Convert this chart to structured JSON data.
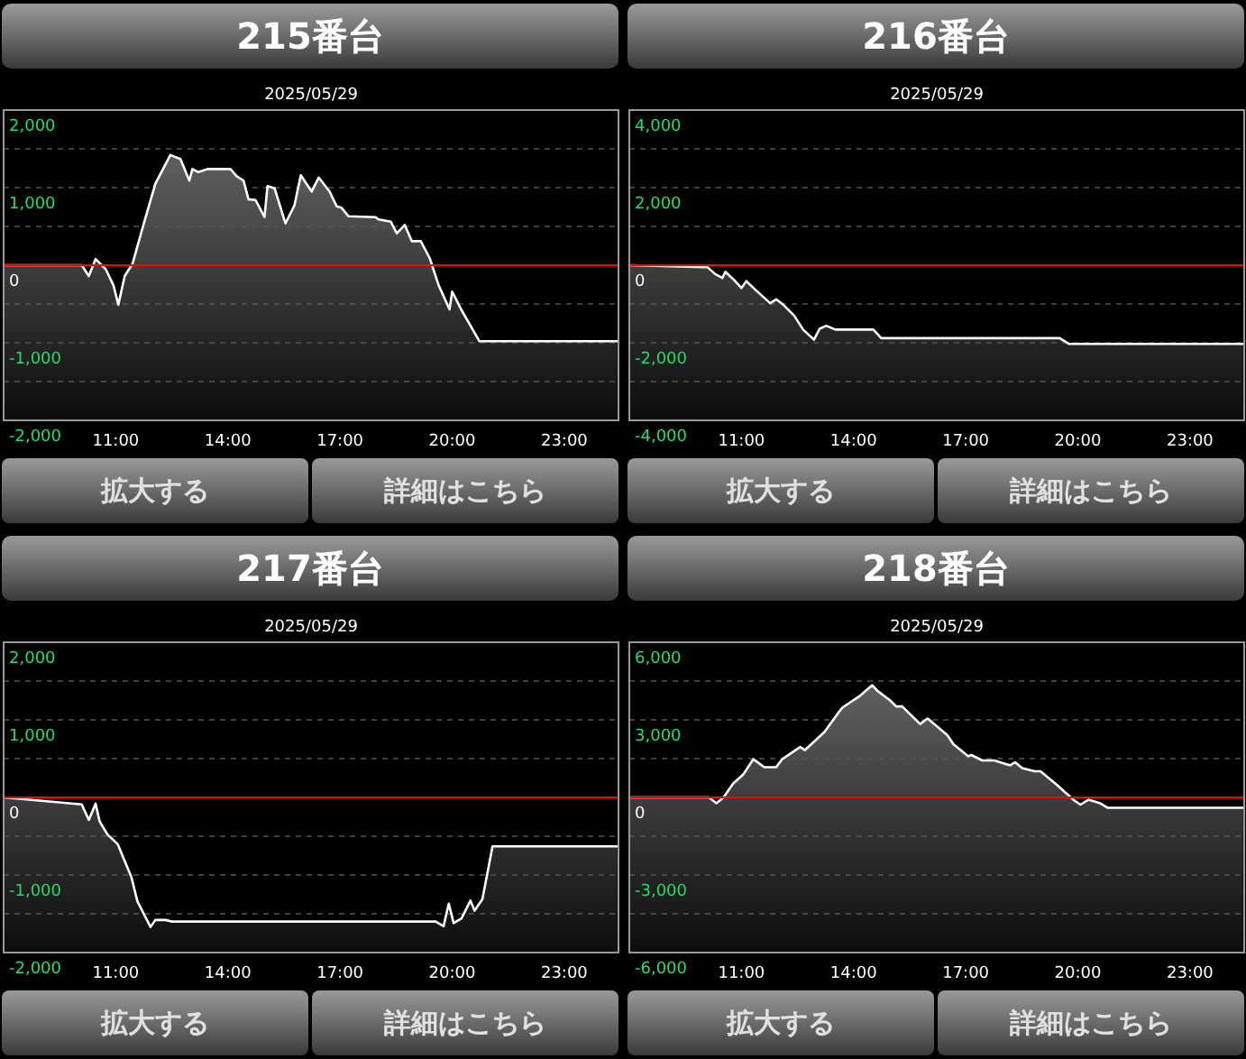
{
  "chart_data": [
    {
      "type": "line",
      "title": "215番台",
      "subtitle": "2025/05/29",
      "xlim": [
        8,
        24.45
      ],
      "ylim": [
        -2000,
        2000
      ],
      "grid": "y",
      "line_style": "solid",
      "xticks": [
        {
          "value": 11,
          "label": "11:00"
        },
        {
          "value": 14,
          "label": "14:00"
        },
        {
          "value": 17,
          "label": "17:00"
        },
        {
          "value": 20,
          "label": "20:00"
        },
        {
          "value": 23,
          "label": "23:00"
        }
      ],
      "yticks": [
        {
          "value": -2000,
          "label": "-2,000"
        },
        {
          "value": -1500,
          "label": null
        },
        {
          "value": -1000,
          "label": "-1,000"
        },
        {
          "value": -500,
          "label": null
        },
        {
          "value": 0,
          "label": "0"
        },
        {
          "value": 500,
          "label": null
        },
        {
          "value": 1000,
          "label": "1,000"
        },
        {
          "value": 1500,
          "label": null
        },
        {
          "value": 2000,
          "label": "2,000"
        }
      ],
      "ref_lines": [
        {
          "axis": "y",
          "value": 0,
          "color": "#ff0000"
        }
      ],
      "series": [
        {
          "color": "#ffffff",
          "x": [
            8,
            10.09,
            10.28,
            10.46,
            10.73,
            10.94,
            11.07,
            11.24,
            11.45,
            11.74,
            12.06,
            12.46,
            12.73,
            12.97,
            13.05,
            13.21,
            13.46,
            14.07,
            14.23,
            14.42,
            14.55,
            14.74,
            14.98,
            15.06,
            15.25,
            15.54,
            15.78,
            15.95,
            16.24,
            16.43,
            16.72,
            16.91,
            17.04,
            17.23,
            17.95,
            18.03,
            18.36,
            18.52,
            18.73,
            18.92,
            19.16,
            19.4,
            19.64,
            19.93,
            20.0,
            20.24,
            20.73,
            24.42
          ],
          "values": [
            0,
            0,
            -140,
            80,
            -50,
            -260,
            -510,
            -140,
            20,
            520,
            1050,
            1420,
            1370,
            1090,
            1240,
            1200,
            1240,
            1240,
            1150,
            1090,
            850,
            840,
            620,
            1020,
            990,
            540,
            770,
            1160,
            950,
            1130,
            950,
            760,
            740,
            630,
            620,
            590,
            560,
            410,
            520,
            310,
            310,
            90,
            -260,
            -570,
            -340,
            -570,
            -980,
            -980
          ]
        }
      ],
      "annotations": [
        "拡大する",
        "詳細はこちら"
      ]
    },
    {
      "type": "line",
      "title": "216番台",
      "subtitle": "2025/05/29",
      "xlim": [
        8,
        24.45
      ],
      "ylim": [
        -4000,
        4000
      ],
      "grid": "y",
      "line_style": "solid",
      "xticks": [
        {
          "value": 11,
          "label": "11:00"
        },
        {
          "value": 14,
          "label": "14:00"
        },
        {
          "value": 17,
          "label": "17:00"
        },
        {
          "value": 20,
          "label": "20:00"
        },
        {
          "value": 23,
          "label": "23:00"
        }
      ],
      "yticks": [
        {
          "value": -4000,
          "label": "-4,000"
        },
        {
          "value": -3000,
          "label": null
        },
        {
          "value": -2000,
          "label": "-2,000"
        },
        {
          "value": -1000,
          "label": null
        },
        {
          "value": 0,
          "label": "0"
        },
        {
          "value": 1000,
          "label": null
        },
        {
          "value": 2000,
          "label": "2,000"
        },
        {
          "value": 3000,
          "label": null
        },
        {
          "value": 4000,
          "label": "4,000"
        }
      ],
      "ref_lines": [
        {
          "axis": "y",
          "value": 0,
          "color": "#ff0000"
        }
      ],
      "series": [
        {
          "color": "#ffffff",
          "x": [
            8,
            10.09,
            10.3,
            10.49,
            10.57,
            10.78,
            11.0,
            11.13,
            11.37,
            11.77,
            11.93,
            12.12,
            12.41,
            12.65,
            12.94,
            13.09,
            13.27,
            13.51,
            14.53,
            14.74,
            19.51,
            19.77,
            24.42
          ],
          "values": [
            0,
            -50,
            -230,
            -330,
            -170,
            -360,
            -590,
            -410,
            -630,
            -980,
            -880,
            -1020,
            -1300,
            -1660,
            -1920,
            -1640,
            -1560,
            -1660,
            -1660,
            -1880,
            -1880,
            -2030,
            -2030
          ]
        }
      ],
      "annotations": [
        "拡大する",
        "詳細はこちら"
      ]
    },
    {
      "type": "line",
      "title": "217番台",
      "subtitle": "2025/05/29",
      "xlim": [
        8,
        24.45
      ],
      "ylim": [
        -2000,
        2000
      ],
      "grid": "y",
      "line_style": "solid",
      "xticks": [
        {
          "value": 11,
          "label": "11:00"
        },
        {
          "value": 14,
          "label": "14:00"
        },
        {
          "value": 17,
          "label": "17:00"
        },
        {
          "value": 20,
          "label": "20:00"
        },
        {
          "value": 23,
          "label": "23:00"
        }
      ],
      "yticks": [
        {
          "value": -2000,
          "label": "-2,000"
        },
        {
          "value": -1500,
          "label": null
        },
        {
          "value": -1000,
          "label": "-1,000"
        },
        {
          "value": -500,
          "label": null
        },
        {
          "value": 0,
          "label": "0"
        },
        {
          "value": 500,
          "label": null
        },
        {
          "value": 1000,
          "label": "1,000"
        },
        {
          "value": 1500,
          "label": null
        },
        {
          "value": 2000,
          "label": "2,000"
        }
      ],
      "ref_lines": [
        {
          "axis": "y",
          "value": 0,
          "color": "#ff0000"
        }
      ],
      "series": [
        {
          "color": "#ffffff",
          "x": [
            8,
            10.09,
            10.28,
            10.46,
            10.57,
            10.78,
            11.05,
            11.42,
            11.58,
            11.93,
            12.06,
            12.33,
            12.49,
            19.56,
            19.77,
            19.91,
            20.04,
            20.25,
            20.49,
            20.6,
            20.81,
            21.08,
            24.42
          ],
          "values": [
            0,
            -90,
            -290,
            -80,
            -310,
            -480,
            -600,
            -1030,
            -1340,
            -1670,
            -1580,
            -1580,
            -1600,
            -1600,
            -1660,
            -1370,
            -1620,
            -1560,
            -1330,
            -1460,
            -1310,
            -630,
            -630
          ]
        }
      ],
      "annotations": [
        "拡大する",
        "詳細はこちら"
      ]
    },
    {
      "type": "line",
      "title": "218番台",
      "subtitle": "2025/05/29",
      "xlim": [
        8,
        24.45
      ],
      "ylim": [
        -6000,
        6000
      ],
      "grid": "y",
      "line_style": "solid",
      "xticks": [
        {
          "value": 11,
          "label": "11:00"
        },
        {
          "value": 14,
          "label": "14:00"
        },
        {
          "value": 17,
          "label": "17:00"
        },
        {
          "value": 20,
          "label": "20:00"
        },
        {
          "value": 23,
          "label": "23:00"
        }
      ],
      "yticks": [
        {
          "value": -6000,
          "label": "-6,000"
        },
        {
          "value": -4500,
          "label": null
        },
        {
          "value": -3000,
          "label": "-3,000"
        },
        {
          "value": -1500,
          "label": null
        },
        {
          "value": 0,
          "label": "0"
        },
        {
          "value": 1500,
          "label": null
        },
        {
          "value": 3000,
          "label": "3,000"
        },
        {
          "value": 4500,
          "label": null
        },
        {
          "value": 6000,
          "label": "6,000"
        }
      ],
      "ref_lines": [
        {
          "axis": "y",
          "value": 0,
          "color": "#ff0000"
        }
      ],
      "series": [
        {
          "color": "#ffffff",
          "x": [
            8,
            10.13,
            10.33,
            10.52,
            10.78,
            11.05,
            11.32,
            11.61,
            11.93,
            12.09,
            12.57,
            12.7,
            13.22,
            13.57,
            13.7,
            14.18,
            14.5,
            14.63,
            14.98,
            15.14,
            15.3,
            15.78,
            15.98,
            16.51,
            16.67,
            17.07,
            17.15,
            17.44,
            17.76,
            18.19,
            18.32,
            18.51,
            18.84,
            19.0,
            19.45,
            19.88,
            20.07,
            20.28,
            20.6,
            20.79,
            24.42
          ],
          "values": [
            0,
            0,
            -230,
            0,
            540,
            890,
            1480,
            1170,
            1170,
            1480,
            1950,
            1830,
            2530,
            3230,
            3470,
            3940,
            4340,
            4130,
            3750,
            3520,
            3520,
            2840,
            3050,
            2410,
            2060,
            1590,
            1640,
            1430,
            1430,
            1240,
            1360,
            1130,
            1010,
            1010,
            470,
            -90,
            -280,
            -90,
            -230,
            -400,
            -400
          ]
        }
      ],
      "annotations": [
        "拡大する",
        "詳細はこちら"
      ]
    }
  ]
}
